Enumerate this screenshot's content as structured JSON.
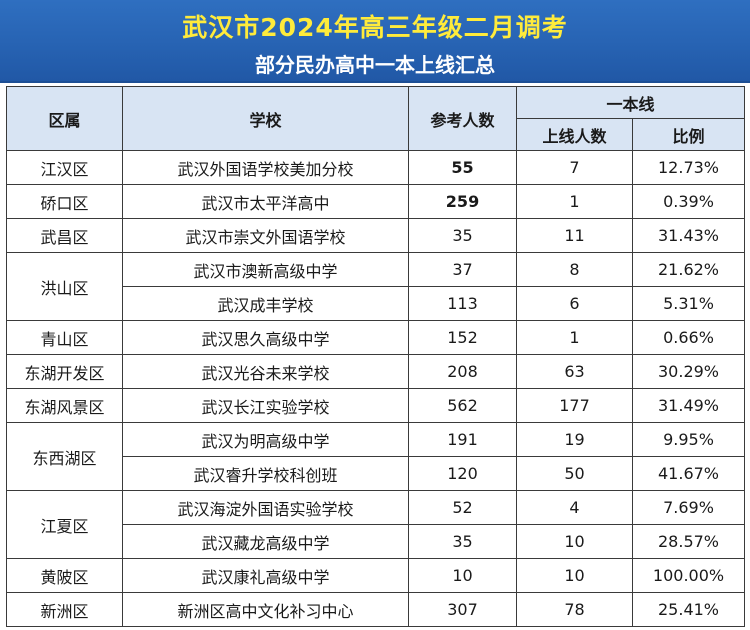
{
  "header": {
    "title": "武汉市2024年高三年级二月调考",
    "subtitle": "部分民办高中一本上线汇总"
  },
  "table": {
    "col_district": "区属",
    "col_school": "学校",
    "col_examinees": "参考人数",
    "col_group": "一本线",
    "col_passed": "上线人数",
    "col_ratio": "比例",
    "groups": [
      {
        "district": "江汉区",
        "rows": [
          {
            "school": "武汉外国语学校美加分校",
            "examinees": "55",
            "passed": "7",
            "ratio": "12.73%",
            "bold": true
          }
        ]
      },
      {
        "district": "硚口区",
        "rows": [
          {
            "school": "武汉市太平洋高中",
            "examinees": "259",
            "passed": "1",
            "ratio": "0.39%",
            "bold": true
          }
        ]
      },
      {
        "district": "武昌区",
        "rows": [
          {
            "school": "武汉市崇文外国语学校",
            "examinees": "35",
            "passed": "11",
            "ratio": "31.43%"
          }
        ]
      },
      {
        "district": "洪山区",
        "rows": [
          {
            "school": "武汉市澳新高级中学",
            "examinees": "37",
            "passed": "8",
            "ratio": "21.62%"
          },
          {
            "school": "武汉成丰学校",
            "examinees": "113",
            "passed": "6",
            "ratio": "5.31%"
          }
        ]
      },
      {
        "district": "青山区",
        "rows": [
          {
            "school": "武汉思久高级中学",
            "examinees": "152",
            "passed": "1",
            "ratio": "0.66%"
          }
        ]
      },
      {
        "district": "东湖开发区",
        "rows": [
          {
            "school": "武汉光谷未来学校",
            "examinees": "208",
            "passed": "63",
            "ratio": "30.29%"
          }
        ]
      },
      {
        "district": "东湖风景区",
        "rows": [
          {
            "school": "武汉长江实验学校",
            "examinees": "562",
            "passed": "177",
            "ratio": "31.49%"
          }
        ]
      },
      {
        "district": "东西湖区",
        "rows": [
          {
            "school": "武汉为明高级中学",
            "examinees": "191",
            "passed": "19",
            "ratio": "9.95%"
          },
          {
            "school": "武汉睿升学校科创班",
            "examinees": "120",
            "passed": "50",
            "ratio": "41.67%"
          }
        ]
      },
      {
        "district": "江夏区",
        "rows": [
          {
            "school": "武汉海淀外国语实验学校",
            "examinees": "52",
            "passed": "4",
            "ratio": "7.69%"
          },
          {
            "school": "武汉藏龙高级中学",
            "examinees": "35",
            "passed": "10",
            "ratio": "28.57%"
          }
        ]
      },
      {
        "district": "黄陂区",
        "rows": [
          {
            "school": "武汉康礼高级中学",
            "examinees": "10",
            "passed": "10",
            "ratio": "100.00%"
          }
        ]
      },
      {
        "district": "新洲区",
        "rows": [
          {
            "school": "新洲区高中文化补习中心",
            "examinees": "307",
            "passed": "78",
            "ratio": "25.41%"
          }
        ]
      }
    ]
  }
}
